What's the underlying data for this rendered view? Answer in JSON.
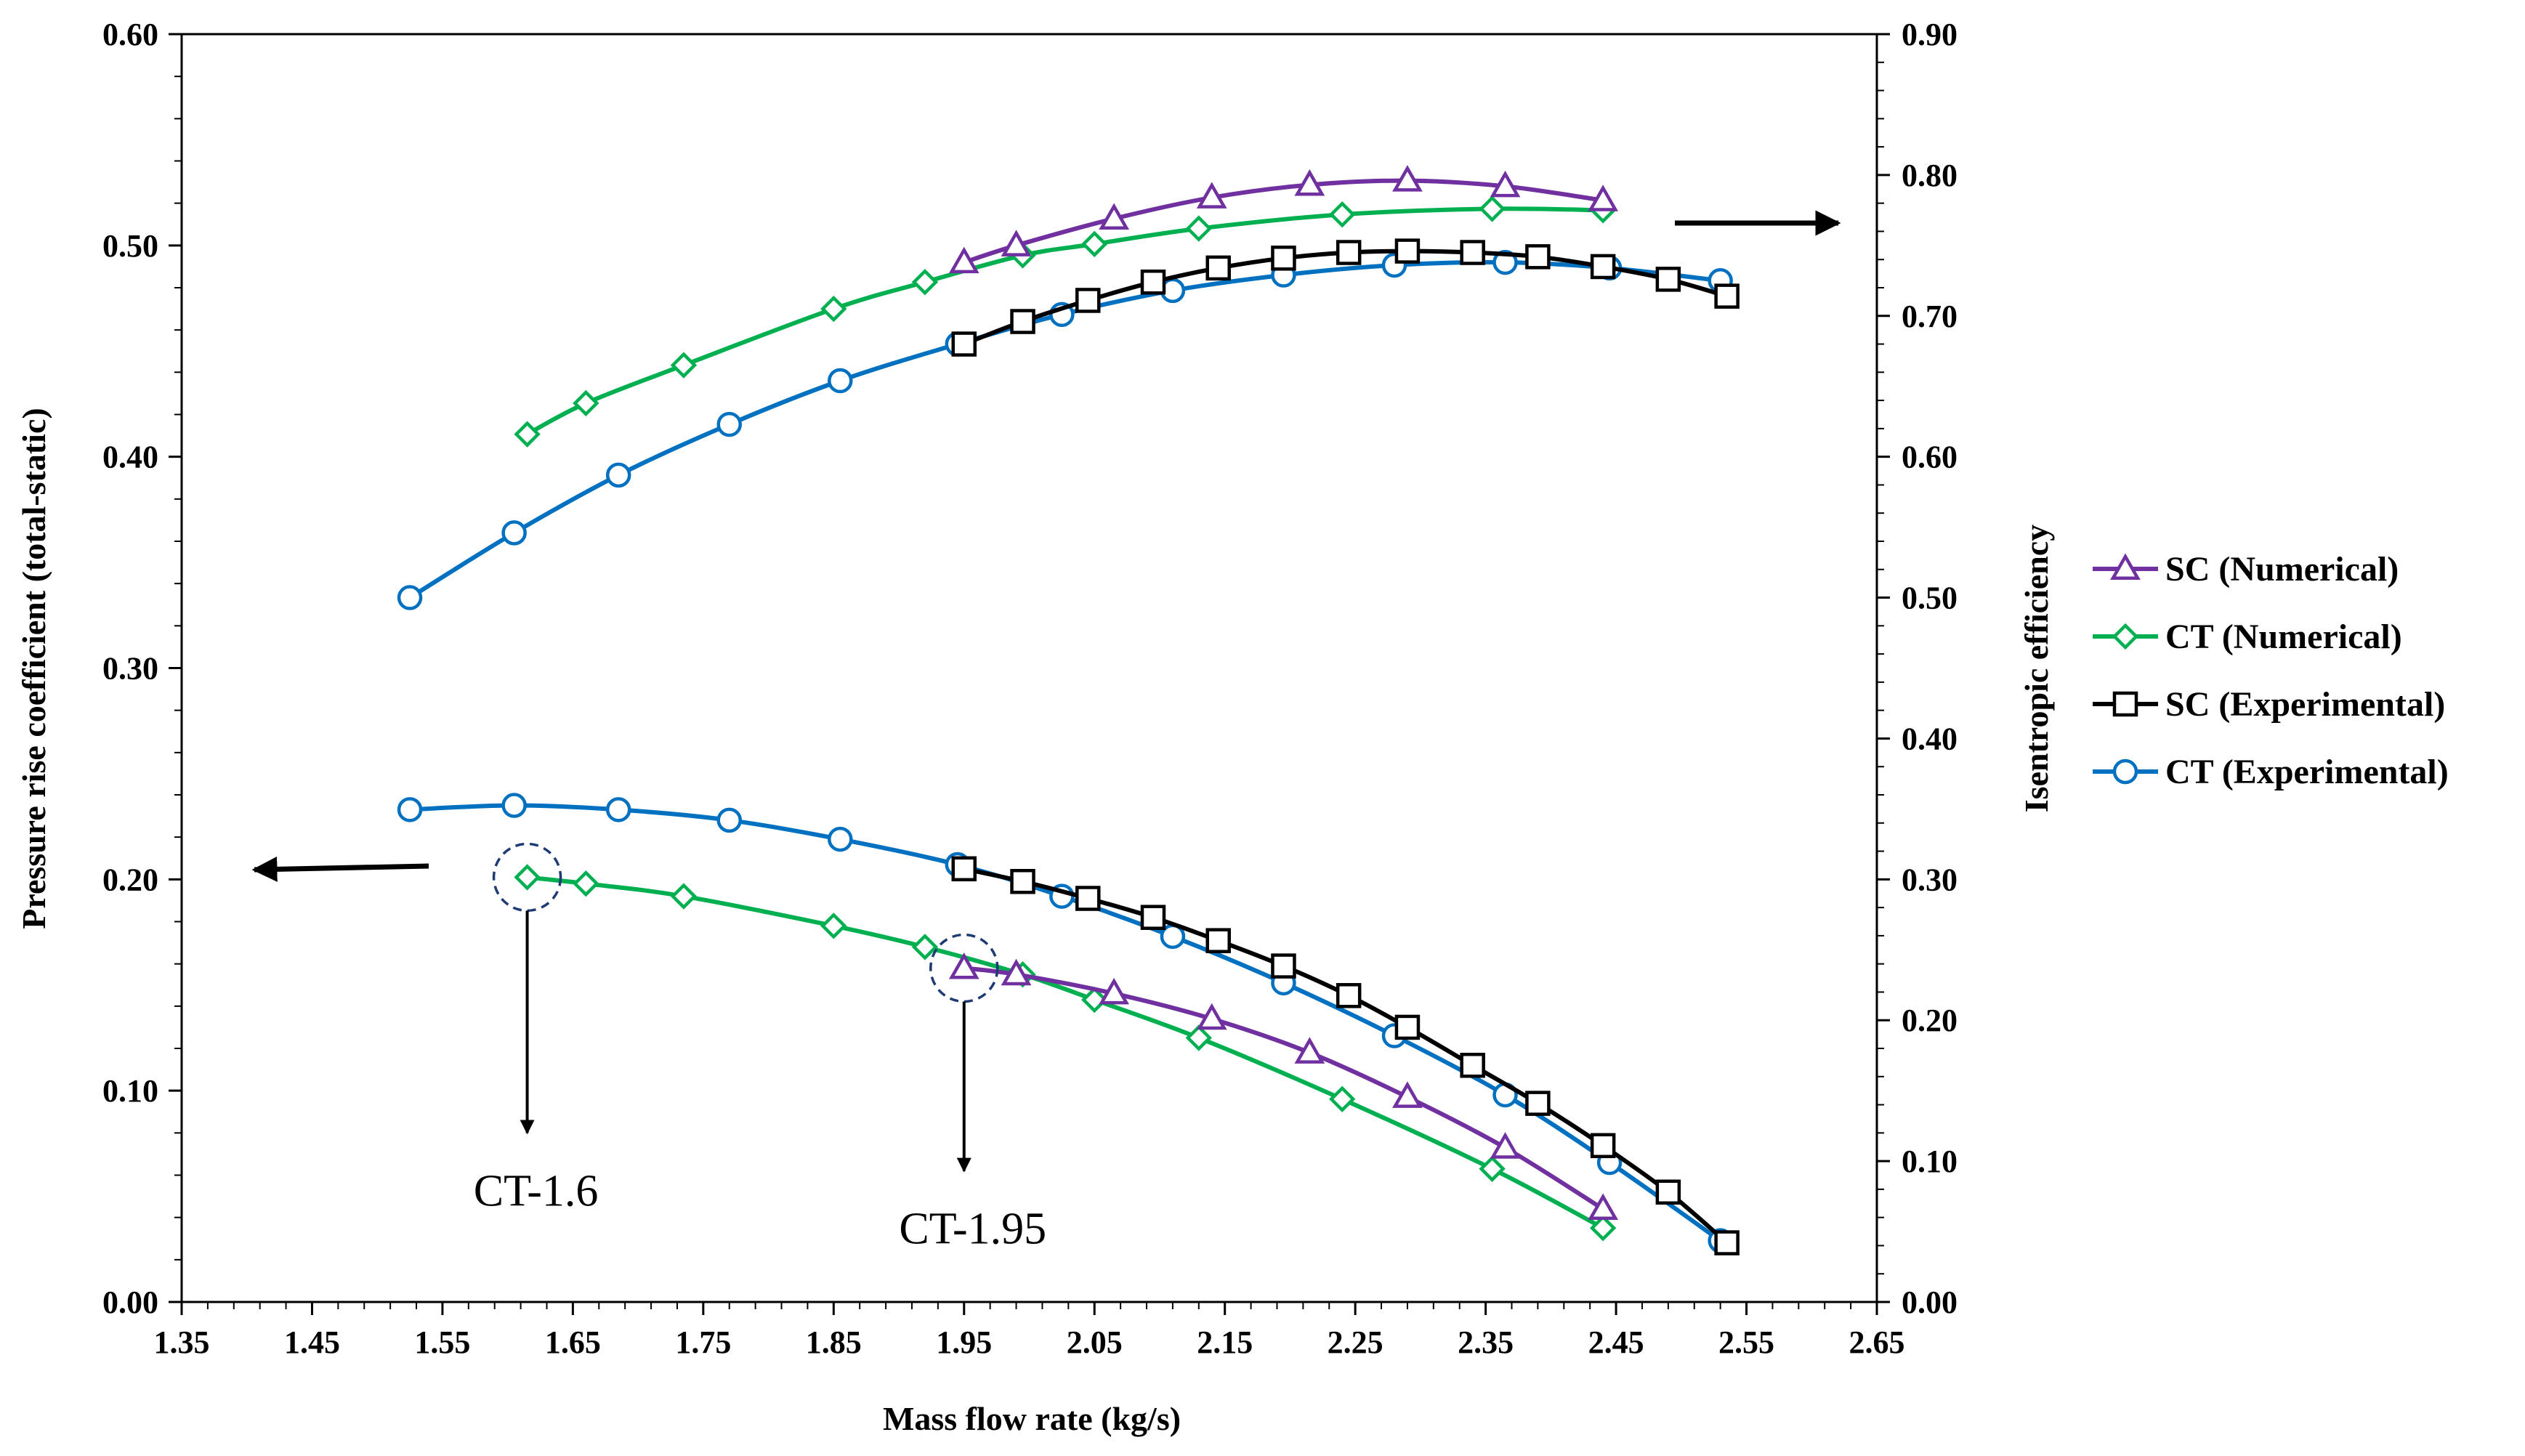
{
  "chart_data": {
    "type": "line",
    "title": "",
    "xlabel": "Mass flow rate (kg/s)",
    "ylabel": "Pressure rise coefficient (total-static)",
    "ylabel_right": "Isentropic efficiency",
    "xlim": [
      1.35,
      2.65
    ],
    "ylim": [
      0.0,
      0.6
    ],
    "ylim_right": [
      0.0,
      0.9
    ],
    "x_ticks": [
      "1.35",
      "1.45",
      "1.55",
      "1.65",
      "1.75",
      "1.85",
      "1.95",
      "2.05",
      "2.15",
      "2.25",
      "2.35",
      "2.45",
      "2.55",
      "2.65"
    ],
    "y_ticks": [
      "0.00",
      "0.10",
      "0.20",
      "0.30",
      "0.40",
      "0.50",
      "0.60"
    ],
    "y_right_ticks": [
      "0.00",
      "0.10",
      "0.20",
      "0.30",
      "0.40",
      "0.50",
      "0.60",
      "0.70",
      "0.80",
      "0.90"
    ],
    "grid": false,
    "legend_position": "right",
    "series": [
      {
        "name": "SC (Numerical)",
        "color": "#7030a0",
        "marker": "triangle",
        "axis": "right",
        "group": "efficiency",
        "x": [
          1.95,
          1.99,
          2.065,
          2.14,
          2.215,
          2.29,
          2.365,
          2.44
        ],
        "y": [
          0.738,
          0.75,
          0.769,
          0.784,
          0.793,
          0.796,
          0.792,
          0.782
        ]
      },
      {
        "name": "CT (Numerical)",
        "color": "#00b050",
        "marker": "diamond",
        "axis": "right",
        "group": "efficiency",
        "x": [
          1.615,
          1.66,
          1.735,
          1.85,
          1.92,
          1.995,
          2.05,
          2.13,
          2.24,
          2.355,
          2.44
        ],
        "y": [
          0.616,
          0.638,
          0.665,
          0.705,
          0.724,
          0.743,
          0.751,
          0.762,
          0.772,
          0.776,
          0.775
        ]
      },
      {
        "name": "SC (Experimental)",
        "color": "#000000",
        "marker": "square",
        "axis": "right",
        "group": "efficiency",
        "x": [
          1.95,
          1.995,
          2.045,
          2.095,
          2.145,
          2.195,
          2.245,
          2.29,
          2.34,
          2.39,
          2.44,
          2.49,
          2.535
        ],
        "y": [
          0.68,
          0.696,
          0.711,
          0.724,
          0.734,
          0.741,
          0.745,
          0.746,
          0.745,
          0.742,
          0.735,
          0.726,
          0.714
        ],
        "y_color_note": ""
      },
      {
        "name": "CT (Experimental)",
        "color": "#0070c0",
        "marker": "circle",
        "axis": "right",
        "group": "efficiency",
        "x": [
          1.525,
          1.605,
          1.685,
          1.77,
          1.855,
          1.945,
          2.025,
          2.11,
          2.195,
          2.28,
          2.365,
          2.445,
          2.53
        ],
        "y": [
          0.5,
          0.546,
          0.587,
          0.623,
          0.654,
          0.68,
          0.701,
          0.718,
          0.729,
          0.736,
          0.738,
          0.734,
          0.725
        ]
      },
      {
        "name": "SC (Numerical)",
        "color": "#7030a0",
        "marker": "triangle",
        "axis": "left",
        "group": "pressure",
        "x": [
          1.95,
          1.99,
          2.065,
          2.14,
          2.215,
          2.29,
          2.365,
          2.44
        ],
        "y": [
          0.158,
          0.155,
          0.146,
          0.134,
          0.118,
          0.097,
          0.073,
          0.044
        ]
      },
      {
        "name": "CT (Numerical)",
        "color": "#00b050",
        "marker": "diamond",
        "axis": "left",
        "group": "pressure",
        "x": [
          1.615,
          1.66,
          1.735,
          1.85,
          1.92,
          1.995,
          2.05,
          2.13,
          2.24,
          2.355,
          2.44
        ],
        "y": [
          0.201,
          0.198,
          0.192,
          0.178,
          0.168,
          0.155,
          0.143,
          0.125,
          0.096,
          0.063,
          0.035
        ]
      },
      {
        "name": "SC (Experimental)",
        "color": "#000000",
        "marker": "square",
        "axis": "left",
        "group": "pressure",
        "x": [
          1.95,
          1.995,
          2.045,
          2.095,
          2.145,
          2.195,
          2.245,
          2.29,
          2.34,
          2.39,
          2.44,
          2.49,
          2.535
        ],
        "y": [
          0.205,
          0.199,
          0.191,
          0.182,
          0.171,
          0.159,
          0.145,
          0.13,
          0.112,
          0.094,
          0.074,
          0.052,
          0.028
        ]
      },
      {
        "name": "CT (Experimental)",
        "color": "#0070c0",
        "marker": "circle",
        "axis": "left",
        "group": "pressure",
        "x": [
          1.525,
          1.605,
          1.685,
          1.77,
          1.855,
          1.945,
          2.025,
          2.11,
          2.195,
          2.28,
          2.365,
          2.445,
          2.53
        ],
        "y": [
          0.233,
          0.235,
          0.233,
          0.228,
          0.219,
          0.207,
          0.192,
          0.173,
          0.151,
          0.126,
          0.098,
          0.066,
          0.029
        ]
      }
    ],
    "annotations": [
      {
        "label": "CT-1.6",
        "circle_x": 1.615,
        "circle_y": 0.201,
        "arrow_to_y": 0.08
      },
      {
        "label": "CT-1.95",
        "circle_x": 1.95,
        "circle_y": 0.158,
        "arrow_to_y": 0.062
      }
    ]
  }
}
